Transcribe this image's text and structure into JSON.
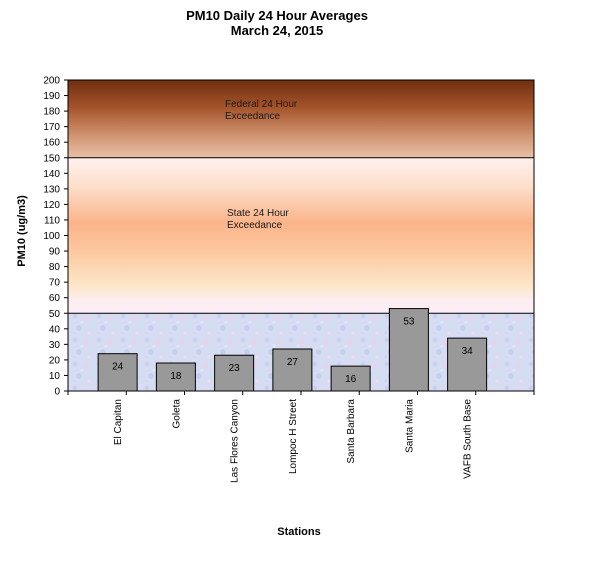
{
  "chart_data": {
    "type": "bar",
    "title": "PM10 Daily 24 Hour Averages",
    "subtitle": "March 24, 2015",
    "xlabel": "Stations",
    "ylabel": "PM10 (ug/m3)",
    "ylim": [
      0,
      200
    ],
    "yticks": [
      0,
      10,
      20,
      30,
      40,
      50,
      60,
      70,
      80,
      90,
      100,
      110,
      120,
      130,
      140,
      150,
      160,
      170,
      180,
      190,
      200
    ],
    "categories": [
      "El Capitan",
      "Goleta",
      "Las Flores Canyon",
      "Lompoc H Street",
      "Santa Barbara",
      "Santa Maria",
      "VAFB South Base"
    ],
    "values": [
      24,
      18,
      23,
      27,
      16,
      53,
      34
    ],
    "data_labels": [
      "24",
      "18",
      "23",
      "27",
      "16",
      "53",
      "34"
    ],
    "bar_color": "#999999",
    "bands": [
      {
        "from": 0,
        "to": 50,
        "label_lines": []
      },
      {
        "from": 50,
        "to": 150,
        "label_lines": [
          "State 24 Hour",
          "Exceedance"
        ]
      },
      {
        "from": 150,
        "to": 200,
        "label_lines": [
          "Federal 24 Hour",
          "Exceedance"
        ]
      }
    ],
    "grid": false,
    "legend": "none"
  }
}
